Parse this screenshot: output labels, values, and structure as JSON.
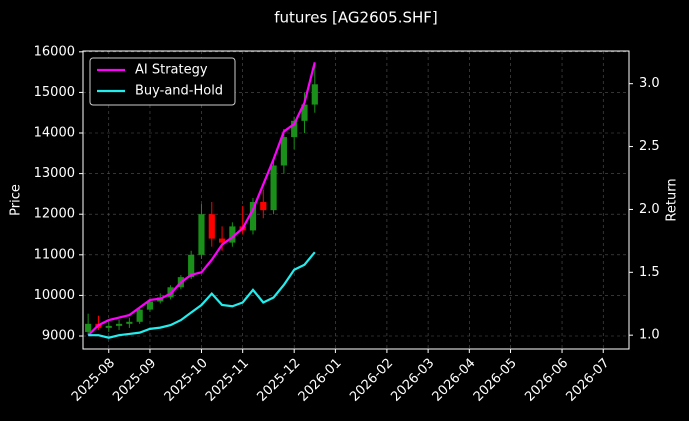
{
  "chart_data": {
    "type": "candlestick",
    "title": "futures [AG2605.SHF]",
    "y_label": "Price",
    "y2_label": "Return",
    "categories": [
      null,
      null,
      "2025-08",
      null,
      null,
      null,
      "2025-09",
      null,
      null,
      null,
      null,
      "2025-10",
      null,
      null,
      null,
      "2025-11",
      null,
      null,
      null,
      null,
      "2025-12",
      null,
      null,
      null,
      "2026-01",
      null,
      null,
      null,
      null,
      "2026-02",
      null,
      null,
      null,
      "2026-03",
      null,
      null,
      null,
      "2026-04",
      null,
      null,
      null,
      "2026-05",
      null,
      null,
      null,
      null,
      "2026-06",
      null,
      null,
      null,
      "2026-07",
      null,
      null
    ],
    "open": [
      9100,
      9300,
      9200,
      9250,
      9300,
      9350,
      9650,
      9850,
      9950,
      10200,
      10450,
      11000,
      12000,
      11400,
      11300,
      11700,
      11600,
      12300,
      12100,
      13200,
      13900,
      14300,
      14700,
      null,
      null,
      null,
      null,
      null,
      null,
      null,
      null,
      null,
      null,
      null,
      null,
      null,
      null,
      null,
      null,
      null,
      null,
      null,
      null,
      null,
      null,
      null,
      null,
      null,
      null,
      null,
      null,
      null,
      null
    ],
    "high": [
      9550,
      9500,
      9350,
      9400,
      9450,
      9700,
      9900,
      10050,
      10250,
      10500,
      11100,
      12250,
      12300,
      11700,
      11800,
      12200,
      12400,
      12600,
      13400,
      14100,
      14400,
      15000,
      15700,
      null,
      null,
      null,
      null,
      null,
      null,
      null,
      null,
      null,
      null,
      null,
      null,
      null,
      null,
      null,
      null,
      null,
      null,
      null,
      null,
      null,
      null,
      null,
      null,
      null,
      null,
      null,
      null,
      null,
      null
    ],
    "low": [
      9050,
      9150,
      9100,
      9150,
      9200,
      9300,
      9600,
      9800,
      9900,
      10150,
      10400,
      10900,
      11200,
      11100,
      11200,
      11500,
      11500,
      11900,
      12000,
      13000,
      13600,
      14000,
      14500,
      null,
      null,
      null,
      null,
      null,
      null,
      null,
      null,
      null,
      null,
      null,
      null,
      null,
      null,
      null,
      null,
      null,
      null,
      null,
      null,
      null,
      null,
      null,
      null,
      null,
      null,
      null,
      null,
      null,
      null
    ],
    "close": [
      9300,
      9200,
      9250,
      9300,
      9350,
      9650,
      9850,
      9950,
      10200,
      10450,
      11000,
      12000,
      11400,
      11300,
      11700,
      11600,
      12300,
      12100,
      13200,
      13900,
      14300,
      14700,
      15200,
      null,
      null,
      null,
      null,
      null,
      null,
      null,
      null,
      null,
      null,
      null,
      null,
      null,
      null,
      null,
      null,
      null,
      null,
      null,
      null,
      null,
      null,
      null,
      null,
      null,
      null,
      null,
      null,
      null,
      null
    ],
    "up_color": "#1a8f1a",
    "down_color": "#ff0000",
    "series": [
      {
        "name": "AI Strategy",
        "color": "#ff00ff",
        "axis": "y2",
        "values": [
          1.0,
          1.08,
          1.12,
          1.14,
          1.16,
          1.22,
          1.28,
          1.29,
          1.33,
          1.42,
          1.48,
          1.5,
          1.6,
          1.72,
          1.78,
          1.85,
          2.0,
          2.2,
          2.4,
          2.62,
          2.68,
          2.85,
          3.17,
          null,
          null,
          null,
          null,
          null,
          null,
          null,
          null,
          null,
          null,
          null,
          null,
          null,
          null,
          null,
          null,
          null,
          null,
          null,
          null,
          null,
          null,
          null,
          null,
          null,
          null,
          null,
          null,
          null,
          null
        ]
      },
      {
        "name": "Buy-and-Hold",
        "color": "#22eeee",
        "axis": "y2",
        "values": [
          1.0,
          1.0,
          0.98,
          1.0,
          1.01,
          1.02,
          1.05,
          1.06,
          1.08,
          1.12,
          1.18,
          1.24,
          1.33,
          1.24,
          1.23,
          1.26,
          1.36,
          1.26,
          1.3,
          1.4,
          1.52,
          1.56,
          1.66,
          null,
          null,
          null,
          null,
          null,
          null,
          null,
          null,
          null,
          null,
          null,
          null,
          null,
          null,
          null,
          null,
          null,
          null,
          null,
          null,
          null,
          null,
          null,
          null,
          null,
          null,
          null,
          null,
          null,
          null
        ]
      }
    ],
    "ylim": [
      8680,
      16020
    ],
    "yticks": [
      9000,
      10000,
      11000,
      12000,
      13000,
      14000,
      15000,
      16000
    ],
    "y2lim": [
      0.89,
      3.26
    ],
    "y2ticks": [
      {
        "value": 1,
        "label": "1.0"
      },
      {
        "value": 1.5,
        "label": "1.5"
      },
      {
        "value": 2,
        "label": "2.0"
      },
      {
        "value": 2.5,
        "label": "2.5"
      },
      {
        "value": 3,
        "label": "3.0"
      }
    ],
    "grid": true,
    "legend": "upper left"
  }
}
